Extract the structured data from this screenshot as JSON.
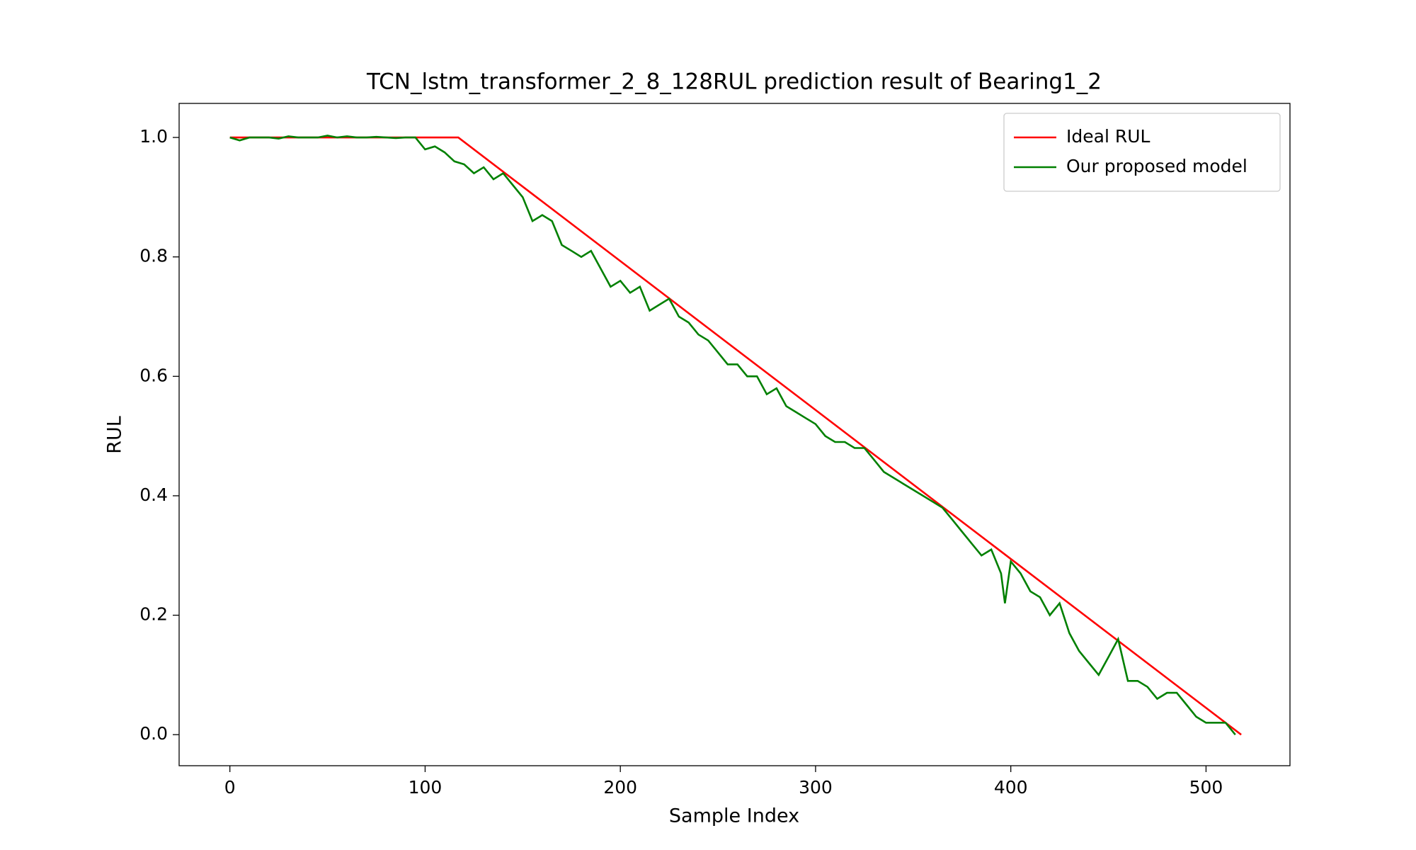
{
  "chart_data": {
    "type": "line",
    "title": "TCN_lstm_transformer_2_8_128RUL prediction result of Bearing1_2",
    "xlabel": "Sample Index",
    "ylabel": "RUL",
    "xlim": [
      -26,
      543
    ],
    "ylim": [
      -0.052,
      1.057
    ],
    "xticks": [
      0,
      100,
      200,
      300,
      400,
      500
    ],
    "yticks": [
      {
        "value": 0,
        "label": "0.0"
      },
      {
        "value": 0.2,
        "label": "0.2"
      },
      {
        "value": 0.4,
        "label": "0.4"
      },
      {
        "value": 0.6,
        "label": "0.6"
      },
      {
        "value": 0.8,
        "label": "0.8"
      },
      {
        "value": 1,
        "label": "1.0"
      }
    ],
    "legend": "upper right",
    "grid": false,
    "series": [
      {
        "name": "Ideal RUL",
        "color": "#ff0000",
        "x": [
          0,
          117,
          518
        ],
        "values": [
          1,
          1,
          0
        ]
      },
      {
        "name": "Our proposed model",
        "color": "#008000",
        "x": [
          0,
          5,
          10,
          15,
          20,
          25,
          30,
          35,
          40,
          45,
          50,
          55,
          60,
          65,
          70,
          75,
          80,
          85,
          90,
          95,
          100,
          105,
          110,
          115,
          120,
          125,
          130,
          135,
          140,
          145,
          150,
          155,
          160,
          165,
          170,
          175,
          180,
          185,
          190,
          195,
          200,
          205,
          210,
          215,
          220,
          225,
          230,
          235,
          240,
          245,
          250,
          255,
          260,
          265,
          270,
          275,
          280,
          285,
          290,
          295,
          300,
          305,
          310,
          315,
          320,
          325,
          330,
          335,
          340,
          345,
          350,
          355,
          360,
          365,
          370,
          375,
          380,
          385,
          390,
          395,
          397,
          400,
          405,
          410,
          415,
          420,
          425,
          430,
          435,
          440,
          445,
          450,
          455,
          460,
          465,
          470,
          475,
          480,
          485,
          490,
          495,
          500,
          505,
          510,
          515
        ],
        "values": [
          1.0,
          0.995,
          1.0,
          1.0,
          1.0,
          0.998,
          1.002,
          1.0,
          1.0,
          1.0,
          1.003,
          1.0,
          1.002,
          1.0,
          1.0,
          1.001,
          1.0,
          0.999,
          1.0,
          1.0,
          0.98,
          0.985,
          0.975,
          0.96,
          0.955,
          0.94,
          0.95,
          0.93,
          0.94,
          0.92,
          0.9,
          0.86,
          0.87,
          0.86,
          0.82,
          0.81,
          0.8,
          0.81,
          0.78,
          0.75,
          0.76,
          0.74,
          0.75,
          0.71,
          0.72,
          0.73,
          0.7,
          0.69,
          0.67,
          0.66,
          0.64,
          0.62,
          0.62,
          0.6,
          0.6,
          0.57,
          0.58,
          0.55,
          0.54,
          0.53,
          0.52,
          0.5,
          0.49,
          0.49,
          0.48,
          0.48,
          0.46,
          0.44,
          0.43,
          0.42,
          0.41,
          0.4,
          0.39,
          0.38,
          0.36,
          0.34,
          0.32,
          0.3,
          0.31,
          0.27,
          0.22,
          0.29,
          0.27,
          0.24,
          0.23,
          0.2,
          0.22,
          0.17,
          0.14,
          0.12,
          0.1,
          0.13,
          0.16,
          0.09,
          0.09,
          0.08,
          0.06,
          0.07,
          0.07,
          0.05,
          0.03,
          0.02,
          0.02,
          0.02,
          0.0
        ]
      }
    ]
  }
}
